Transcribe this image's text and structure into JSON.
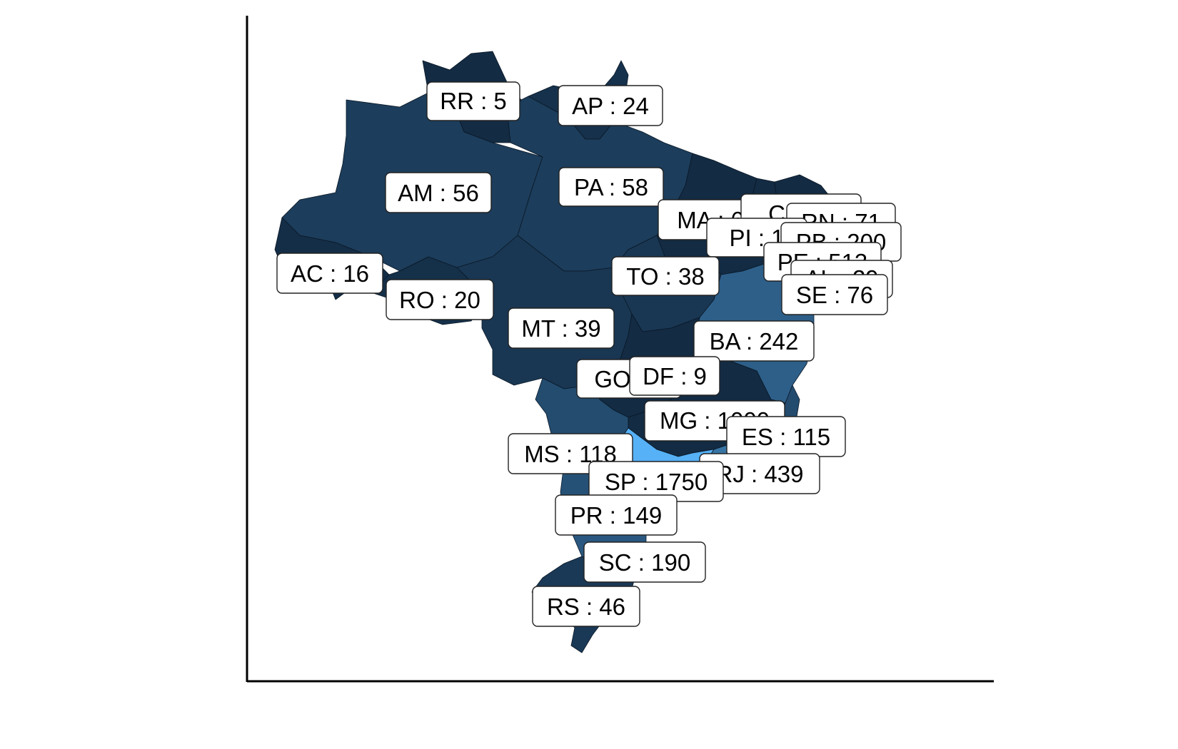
{
  "colors": {
    "low": "#132B43",
    "high": "#56B1F7",
    "axis": "#000000",
    "label_fill": "#ffffff",
    "label_border": "#222222"
  },
  "states": [
    {
      "code": "RR",
      "value": 5,
      "label": "RR : 5"
    },
    {
      "code": "AP",
      "value": 24,
      "label": "AP : 24"
    },
    {
      "code": "AM",
      "value": 56,
      "label": "AM : 56"
    },
    {
      "code": "PA",
      "value": 58,
      "label": "PA : 58"
    },
    {
      "code": "MA",
      "value": null,
      "label": "MA : 6"
    },
    {
      "code": "CE",
      "value": null,
      "label": "CE : 1"
    },
    {
      "code": "RN",
      "value": 71,
      "label": "RN : 71"
    },
    {
      "code": "PI",
      "value": null,
      "label": "PI : 1"
    },
    {
      "code": "PB",
      "value": 200,
      "label": "PB : 200"
    },
    {
      "code": "PE",
      "value": 513,
      "label": "PE : 513"
    },
    {
      "code": "AL",
      "value": null,
      "label": "AL : 29"
    },
    {
      "code": "SE",
      "value": 76,
      "label": "SE : 76"
    },
    {
      "code": "AC",
      "value": 16,
      "label": "AC : 16"
    },
    {
      "code": "RO",
      "value": 20,
      "label": "RO : 20"
    },
    {
      "code": "TO",
      "value": 38,
      "label": "TO : 38"
    },
    {
      "code": "MT",
      "value": 39,
      "label": "MT : 39"
    },
    {
      "code": "BA",
      "value": 242,
      "label": "BA : 242"
    },
    {
      "code": "GO",
      "value": null,
      "label": "GO : 3"
    },
    {
      "code": "DF",
      "value": 9,
      "label": "DF : 9"
    },
    {
      "code": "MG",
      "value": null,
      "label": "MG : 1000"
    },
    {
      "code": "ES",
      "value": 115,
      "label": "ES : 115"
    },
    {
      "code": "MS",
      "value": 118,
      "label": "MS : 118"
    },
    {
      "code": "RJ",
      "value": 439,
      "label": "RJ : 439"
    },
    {
      "code": "SP",
      "value": 1750,
      "label": "SP : 1750"
    },
    {
      "code": "PR",
      "value": 149,
      "label": "PR : 149"
    },
    {
      "code": "SC",
      "value": 190,
      "label": "SC : 190"
    },
    {
      "code": "RS",
      "value": 46,
      "label": "RS : 46"
    }
  ]
}
